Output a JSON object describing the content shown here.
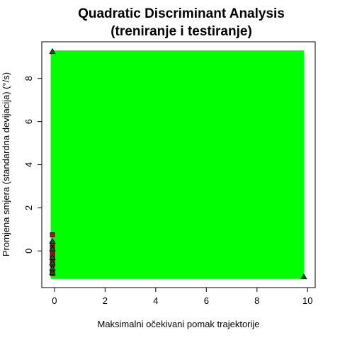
{
  "chart_data": {
    "type": "scatter",
    "title": "Quadratic Discriminant Analysis",
    "subtitle": "(treniranje i testiranje)",
    "xlabel": "Maksimalni očekivani pomak trajektorije",
    "ylabel": "Promjena smjera (standardna devijacija) (°/s)",
    "xlim": [
      -0.5,
      10.3
    ],
    "ylim": [
      -1.7,
      9.7
    ],
    "x_ticks": [
      0,
      2,
      4,
      6,
      8,
      10
    ],
    "y_ticks": [
      0,
      2,
      4,
      6,
      8
    ],
    "x_tick_labels": [
      "0",
      "2",
      "4",
      "6",
      "8",
      "10"
    ],
    "y_tick_labels": [
      "0",
      "2",
      "4",
      "6",
      "8"
    ],
    "grid": false,
    "decision_region": {
      "color": "#00ff00",
      "x_range": [
        -0.15,
        9.85
      ],
      "y_range": [
        -1.3,
        9.3
      ]
    },
    "series": [
      {
        "marker": "square",
        "color": "#cc0000",
        "points": [
          {
            "x": -0.08,
            "y": 0.75
          },
          {
            "x": -0.08,
            "y": 0.35
          },
          {
            "x": -0.08,
            "y": 0.15
          },
          {
            "x": -0.08,
            "y": 0.0
          },
          {
            "x": -0.08,
            "y": -0.1
          },
          {
            "x": -0.08,
            "y": -0.2
          },
          {
            "x": -0.08,
            "y": -0.35
          },
          {
            "x": -0.08,
            "y": -0.5
          },
          {
            "x": -0.08,
            "y": -0.65
          },
          {
            "x": -0.08,
            "y": -0.95
          },
          {
            "x": -0.08,
            "y": -1.05
          }
        ]
      },
      {
        "marker": "triangle",
        "color": "#006400",
        "points": [
          {
            "x": -0.08,
            "y": 9.25
          },
          {
            "x": -0.08,
            "y": 0.45
          },
          {
            "x": -0.08,
            "y": 0.1
          },
          {
            "x": -0.08,
            "y": -0.3
          },
          {
            "x": -0.08,
            "y": -0.55
          },
          {
            "x": -0.08,
            "y": -0.8
          },
          {
            "x": -0.08,
            "y": -1.0
          },
          {
            "x": 9.85,
            "y": -1.2
          }
        ]
      }
    ]
  }
}
